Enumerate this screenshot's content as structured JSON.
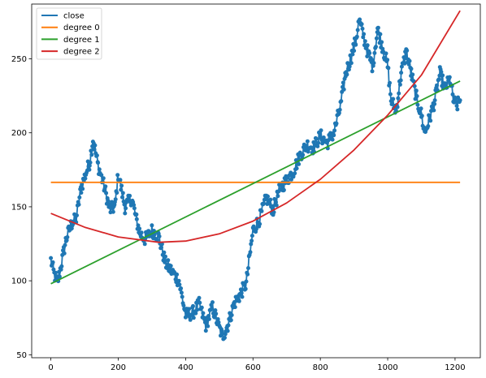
{
  "chart_data": {
    "type": "line",
    "title": "",
    "xlabel": "",
    "ylabel": "",
    "xlim": [
      -57,
      1275
    ],
    "ylim": [
      48,
      287
    ],
    "xticks": [
      0,
      200,
      400,
      600,
      800,
      1000,
      1200
    ],
    "yticks": [
      50,
      100,
      150,
      200,
      250
    ],
    "grid": false,
    "legend_position": "top-left",
    "series": [
      {
        "name": "close",
        "color": "#1f77b4",
        "style": "line+markers",
        "anchors": [
          [
            0,
            114
          ],
          [
            10,
            104
          ],
          [
            20,
            99
          ],
          [
            30,
            110
          ],
          [
            45,
            128
          ],
          [
            60,
            138
          ],
          [
            75,
            142
          ],
          [
            90,
            163
          ],
          [
            100,
            170
          ],
          [
            115,
            180
          ],
          [
            125,
            196
          ],
          [
            140,
            178
          ],
          [
            160,
            162
          ],
          [
            175,
            148
          ],
          [
            190,
            150
          ],
          [
            200,
            172
          ],
          [
            220,
            150
          ],
          [
            240,
            156
          ],
          [
            255,
            140
          ],
          [
            265,
            132
          ],
          [
            280,
            128
          ],
          [
            300,
            134
          ],
          [
            320,
            130
          ],
          [
            340,
            112
          ],
          [
            360,
            106
          ],
          [
            380,
            100
          ],
          [
            400,
            77
          ],
          [
            420,
            78
          ],
          [
            440,
            84
          ],
          [
            460,
            70
          ],
          [
            480,
            82
          ],
          [
            500,
            68
          ],
          [
            510,
            62
          ],
          [
            525,
            70
          ],
          [
            545,
            85
          ],
          [
            560,
            90
          ],
          [
            580,
            98
          ],
          [
            600,
            134
          ],
          [
            620,
            142
          ],
          [
            640,
            156
          ],
          [
            660,
            148
          ],
          [
            680,
            162
          ],
          [
            700,
            168
          ],
          [
            720,
            174
          ],
          [
            740,
            185
          ],
          [
            760,
            192
          ],
          [
            780,
            190
          ],
          [
            800,
            198
          ],
          [
            820,
            193
          ],
          [
            840,
            200
          ],
          [
            860,
            218
          ],
          [
            875,
            240
          ],
          [
            890,
            250
          ],
          [
            905,
            262
          ],
          [
            915,
            276
          ],
          [
            925,
            268
          ],
          [
            940,
            255
          ],
          [
            955,
            245
          ],
          [
            970,
            270
          ],
          [
            985,
            258
          ],
          [
            1000,
            245
          ],
          [
            1010,
            222
          ],
          [
            1025,
            215
          ],
          [
            1040,
            240
          ],
          [
            1055,
            255
          ],
          [
            1070,
            240
          ],
          [
            1085,
            224
          ],
          [
            1100,
            212
          ],
          [
            1110,
            200
          ],
          [
            1125,
            210
          ],
          [
            1140,
            222
          ],
          [
            1155,
            240
          ],
          [
            1170,
            230
          ],
          [
            1185,
            236
          ],
          [
            1195,
            222
          ],
          [
            1205,
            218
          ],
          [
            1215,
            222
          ]
        ]
      },
      {
        "name": "degree 0",
        "color": "#ff7f0e",
        "style": "line",
        "x": [
          0,
          1215
        ],
        "y": [
          166.5,
          166.5
        ]
      },
      {
        "name": "degree 1",
        "color": "#2ca02c",
        "style": "line",
        "x": [
          0,
          1215
        ],
        "y": [
          98,
          235
        ]
      },
      {
        "name": "degree 2",
        "color": "#d62728",
        "style": "line",
        "x": [
          0,
          100,
          200,
          320,
          400,
          500,
          600,
          700,
          800,
          900,
          1000,
          1100,
          1215
        ],
        "y": [
          145.5,
          136.2,
          129.6,
          126.0,
          126.8,
          131.7,
          140.3,
          152.6,
          168.6,
          188.4,
          211.9,
          239.0,
          282.5
        ]
      }
    ]
  }
}
